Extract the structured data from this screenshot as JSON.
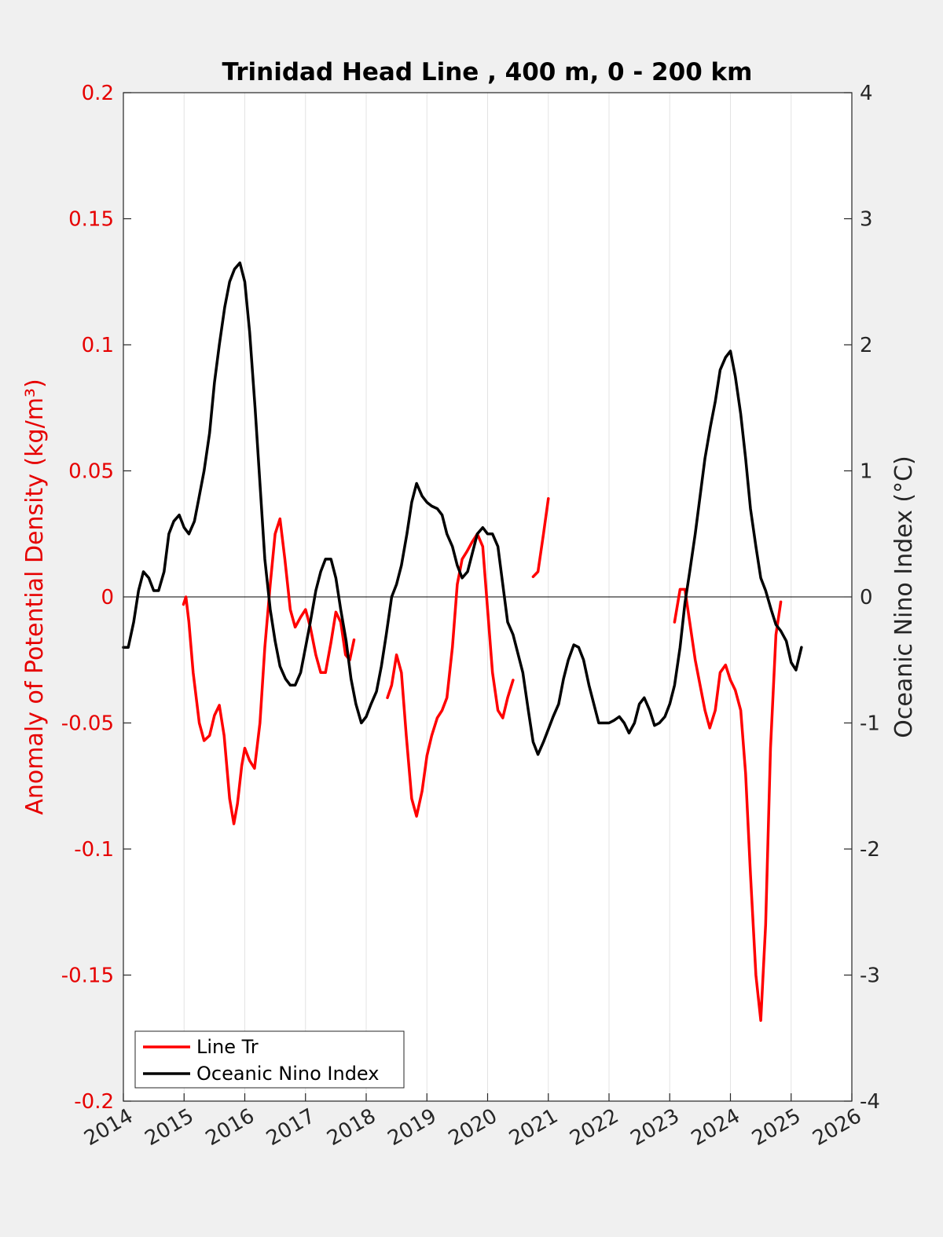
{
  "chart_data": {
    "type": "line",
    "title": "Trinidad Head Line , 400 m, 0 - 200 km",
    "xlabel": "",
    "xlim": [
      2014,
      2026
    ],
    "xticks": [
      "2014",
      "2015",
      "2016",
      "2017",
      "2018",
      "2019",
      "2020",
      "2021",
      "2022",
      "2023",
      "2024",
      "2025",
      "2026"
    ],
    "ylabel_left": "Anomaly of Potential Density (kg/m³)",
    "ylim_left": [
      -0.2,
      0.2
    ],
    "yticks_left": [
      "-0.2",
      "-0.15",
      "-0.1",
      "-0.05",
      "0",
      "0.05",
      "0.1",
      "0.15",
      "0.2"
    ],
    "ylabel_right": "Oceanic Nino Index (°C)",
    "ylim_right": [
      -4,
      4
    ],
    "yticks_right": [
      "-4",
      "-3",
      "-2",
      "-1",
      "0",
      "1",
      "2",
      "3",
      "4"
    ],
    "grid": "vertical",
    "legend_position": "bottom-left",
    "colors": {
      "line_tr": "#ff0000",
      "oni": "#000000",
      "left_axis": "#e60000",
      "right_axis": "#262626"
    },
    "series": [
      {
        "name": "Line Tr",
        "axis": "left",
        "segments": [
          [
            [
              2014.99,
              -0.003
            ],
            [
              2015.03,
              0.0
            ],
            [
              2015.08,
              -0.01
            ],
            [
              2015.15,
              -0.03
            ],
            [
              2015.25,
              -0.05
            ],
            [
              2015.33,
              -0.057
            ],
            [
              2015.42,
              -0.055
            ],
            [
              2015.5,
              -0.047
            ],
            [
              2015.58,
              -0.043
            ],
            [
              2015.66,
              -0.055
            ],
            [
              2015.75,
              -0.08
            ],
            [
              2015.82,
              -0.09
            ],
            [
              2015.88,
              -0.082
            ],
            [
              2015.95,
              -0.067
            ],
            [
              2016.0,
              -0.06
            ],
            [
              2016.08,
              -0.065
            ],
            [
              2016.16,
              -0.068
            ],
            [
              2016.25,
              -0.05
            ],
            [
              2016.33,
              -0.02
            ],
            [
              2016.42,
              0.005
            ],
            [
              2016.5,
              0.025
            ],
            [
              2016.58,
              0.031
            ],
            [
              2016.66,
              0.015
            ],
            [
              2016.75,
              -0.005
            ],
            [
              2016.83,
              -0.012
            ],
            [
              2016.92,
              -0.008
            ],
            [
              2017.0,
              -0.005
            ],
            [
              2017.08,
              -0.012
            ],
            [
              2017.17,
              -0.023
            ],
            [
              2017.25,
              -0.03
            ],
            [
              2017.33,
              -0.03
            ],
            [
              2017.42,
              -0.018
            ],
            [
              2017.5,
              -0.006
            ],
            [
              2017.58,
              -0.01
            ],
            [
              2017.66,
              -0.023
            ],
            [
              2017.73,
              -0.025
            ],
            [
              2017.8,
              -0.017
            ]
          ],
          [
            [
              2018.35,
              -0.04
            ],
            [
              2018.42,
              -0.035
            ],
            [
              2018.5,
              -0.023
            ],
            [
              2018.58,
              -0.03
            ],
            [
              2018.66,
              -0.055
            ],
            [
              2018.75,
              -0.08
            ],
            [
              2018.83,
              -0.087
            ],
            [
              2018.92,
              -0.077
            ],
            [
              2019.0,
              -0.063
            ],
            [
              2019.08,
              -0.055
            ],
            [
              2019.17,
              -0.048
            ],
            [
              2019.25,
              -0.045
            ],
            [
              2019.33,
              -0.04
            ],
            [
              2019.42,
              -0.02
            ],
            [
              2019.5,
              0.005
            ],
            [
              2019.58,
              0.015
            ],
            [
              2019.66,
              0.018
            ],
            [
              2019.75,
              0.022
            ],
            [
              2019.83,
              0.025
            ],
            [
              2019.92,
              0.02
            ],
            [
              2020.0,
              -0.005
            ],
            [
              2020.08,
              -0.03
            ],
            [
              2020.17,
              -0.045
            ],
            [
              2020.25,
              -0.048
            ],
            [
              2020.33,
              -0.04
            ],
            [
              2020.42,
              -0.033
            ]
          ],
          [
            [
              2020.75,
              0.008
            ],
            [
              2020.83,
              0.01
            ],
            [
              2020.92,
              0.025
            ],
            [
              2021.0,
              0.039
            ]
          ],
          [
            [
              2023.08,
              -0.01
            ],
            [
              2023.17,
              0.003
            ],
            [
              2023.25,
              0.003
            ],
            [
              2023.33,
              -0.01
            ],
            [
              2023.42,
              -0.025
            ],
            [
              2023.5,
              -0.035
            ],
            [
              2023.58,
              -0.045
            ],
            [
              2023.66,
              -0.052
            ],
            [
              2023.75,
              -0.045
            ],
            [
              2023.83,
              -0.03
            ],
            [
              2023.92,
              -0.027
            ],
            [
              2024.0,
              -0.033
            ],
            [
              2024.08,
              -0.037
            ],
            [
              2024.17,
              -0.045
            ],
            [
              2024.25,
              -0.07
            ],
            [
              2024.33,
              -0.11
            ],
            [
              2024.42,
              -0.15
            ],
            [
              2024.5,
              -0.168
            ],
            [
              2024.58,
              -0.13
            ],
            [
              2024.66,
              -0.06
            ],
            [
              2024.75,
              -0.015
            ],
            [
              2024.83,
              -0.002
            ]
          ]
        ]
      },
      {
        "name": "Oceanic Nino Index",
        "axis": "right",
        "points": [
          [
            2014.0,
            -0.4
          ],
          [
            2014.08,
            -0.4
          ],
          [
            2014.17,
            -0.2
          ],
          [
            2014.25,
            0.05
          ],
          [
            2014.33,
            0.2
          ],
          [
            2014.42,
            0.15
          ],
          [
            2014.5,
            0.05
          ],
          [
            2014.58,
            0.05
          ],
          [
            2014.67,
            0.2
          ],
          [
            2014.75,
            0.5
          ],
          [
            2014.83,
            0.6
          ],
          [
            2014.92,
            0.65
          ],
          [
            2015.0,
            0.55
          ],
          [
            2015.08,
            0.5
          ],
          [
            2015.17,
            0.6
          ],
          [
            2015.25,
            0.8
          ],
          [
            2015.33,
            1.0
          ],
          [
            2015.42,
            1.3
          ],
          [
            2015.5,
            1.7
          ],
          [
            2015.58,
            2.0
          ],
          [
            2015.67,
            2.3
          ],
          [
            2015.75,
            2.5
          ],
          [
            2015.83,
            2.6
          ],
          [
            2015.92,
            2.65
          ],
          [
            2016.0,
            2.5
          ],
          [
            2016.08,
            2.1
          ],
          [
            2016.17,
            1.5
          ],
          [
            2016.25,
            0.9
          ],
          [
            2016.33,
            0.3
          ],
          [
            2016.42,
            -0.1
          ],
          [
            2016.5,
            -0.35
          ],
          [
            2016.58,
            -0.55
          ],
          [
            2016.67,
            -0.65
          ],
          [
            2016.75,
            -0.7
          ],
          [
            2016.83,
            -0.7
          ],
          [
            2016.92,
            -0.6
          ],
          [
            2017.0,
            -0.4
          ],
          [
            2017.08,
            -0.2
          ],
          [
            2017.17,
            0.05
          ],
          [
            2017.25,
            0.2
          ],
          [
            2017.33,
            0.3
          ],
          [
            2017.42,
            0.3
          ],
          [
            2017.5,
            0.15
          ],
          [
            2017.58,
            -0.1
          ],
          [
            2017.67,
            -0.35
          ],
          [
            2017.75,
            -0.65
          ],
          [
            2017.83,
            -0.85
          ],
          [
            2017.92,
            -1.0
          ],
          [
            2018.0,
            -0.95
          ],
          [
            2018.08,
            -0.85
          ],
          [
            2018.17,
            -0.75
          ],
          [
            2018.25,
            -0.55
          ],
          [
            2018.33,
            -0.3
          ],
          [
            2018.42,
            0.0
          ],
          [
            2018.5,
            0.1
          ],
          [
            2018.58,
            0.25
          ],
          [
            2018.67,
            0.5
          ],
          [
            2018.75,
            0.75
          ],
          [
            2018.83,
            0.9
          ],
          [
            2018.92,
            0.8
          ],
          [
            2019.0,
            0.75
          ],
          [
            2019.08,
            0.72
          ],
          [
            2019.17,
            0.7
          ],
          [
            2019.25,
            0.65
          ],
          [
            2019.33,
            0.5
          ],
          [
            2019.42,
            0.4
          ],
          [
            2019.5,
            0.25
          ],
          [
            2019.58,
            0.15
          ],
          [
            2019.67,
            0.2
          ],
          [
            2019.75,
            0.35
          ],
          [
            2019.83,
            0.5
          ],
          [
            2019.92,
            0.55
          ],
          [
            2020.0,
            0.5
          ],
          [
            2020.08,
            0.5
          ],
          [
            2020.17,
            0.4
          ],
          [
            2020.25,
            0.1
          ],
          [
            2020.33,
            -0.2
          ],
          [
            2020.42,
            -0.3
          ],
          [
            2020.5,
            -0.45
          ],
          [
            2020.58,
            -0.6
          ],
          [
            2020.67,
            -0.9
          ],
          [
            2020.75,
            -1.15
          ],
          [
            2020.83,
            -1.25
          ],
          [
            2020.92,
            -1.15
          ],
          [
            2021.0,
            -1.05
          ],
          [
            2021.08,
            -0.95
          ],
          [
            2021.17,
            -0.85
          ],
          [
            2021.25,
            -0.65
          ],
          [
            2021.33,
            -0.5
          ],
          [
            2021.42,
            -0.38
          ],
          [
            2021.5,
            -0.4
          ],
          [
            2021.58,
            -0.5
          ],
          [
            2021.67,
            -0.7
          ],
          [
            2021.75,
            -0.85
          ],
          [
            2021.83,
            -1.0
          ],
          [
            2021.92,
            -1.0
          ],
          [
            2022.0,
            -1.0
          ],
          [
            2022.08,
            -0.98
          ],
          [
            2022.17,
            -0.95
          ],
          [
            2022.25,
            -1.0
          ],
          [
            2022.33,
            -1.08
          ],
          [
            2022.42,
            -1.0
          ],
          [
            2022.5,
            -0.85
          ],
          [
            2022.58,
            -0.8
          ],
          [
            2022.67,
            -0.9
          ],
          [
            2022.75,
            -1.02
          ],
          [
            2022.83,
            -1.0
          ],
          [
            2022.92,
            -0.95
          ],
          [
            2023.0,
            -0.85
          ],
          [
            2023.08,
            -0.7
          ],
          [
            2023.17,
            -0.4
          ],
          [
            2023.25,
            -0.05
          ],
          [
            2023.33,
            0.2
          ],
          [
            2023.42,
            0.5
          ],
          [
            2023.5,
            0.8
          ],
          [
            2023.58,
            1.1
          ],
          [
            2023.67,
            1.35
          ],
          [
            2023.75,
            1.55
          ],
          [
            2023.83,
            1.8
          ],
          [
            2023.92,
            1.9
          ],
          [
            2024.0,
            1.95
          ],
          [
            2024.08,
            1.75
          ],
          [
            2024.17,
            1.45
          ],
          [
            2024.25,
            1.1
          ],
          [
            2024.33,
            0.7
          ],
          [
            2024.42,
            0.4
          ],
          [
            2024.5,
            0.15
          ],
          [
            2024.58,
            0.05
          ],
          [
            2024.67,
            -0.1
          ],
          [
            2024.75,
            -0.22
          ],
          [
            2024.83,
            -0.27
          ],
          [
            2024.92,
            -0.35
          ],
          [
            2025.0,
            -0.52
          ],
          [
            2025.08,
            -0.58
          ],
          [
            2025.17,
            -0.4
          ]
        ]
      }
    ]
  }
}
